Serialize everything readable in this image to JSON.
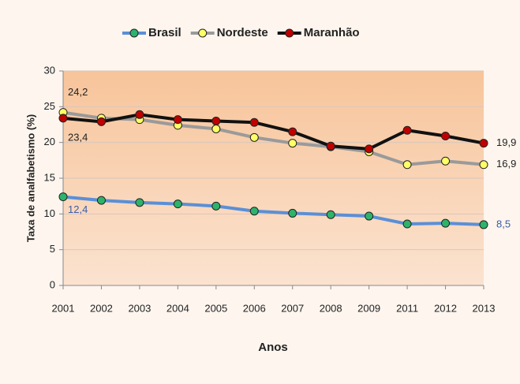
{
  "chart_data": {
    "type": "line",
    "categories": [
      "2001",
      "2002",
      "2003",
      "2004",
      "2005",
      "2006",
      "2007",
      "2008",
      "2009",
      "2011",
      "2012",
      "2013"
    ],
    "series": [
      {
        "name": "Brasil",
        "color": "#5b8fd6",
        "marker_color": "#2db36b",
        "values": [
          12.4,
          11.9,
          11.6,
          11.4,
          11.1,
          10.4,
          10.1,
          9.9,
          9.7,
          8.6,
          8.7,
          8.5
        ],
        "value_labels": [
          "12,4",
          null,
          null,
          null,
          null,
          null,
          null,
          null,
          null,
          null,
          null,
          "8,5"
        ]
      },
      {
        "name": "Nordeste",
        "color": "#9a9a9a",
        "marker_color": "#ffff66",
        "values": [
          24.2,
          23.4,
          23.2,
          22.4,
          21.9,
          20.7,
          19.9,
          19.4,
          18.7,
          16.9,
          17.4,
          16.9
        ],
        "value_labels": [
          "24,2",
          null,
          null,
          null,
          null,
          null,
          null,
          null,
          null,
          null,
          null,
          "16,9"
        ]
      },
      {
        "name": "Maranhão",
        "color": "#111111",
        "marker_color": "#c00000",
        "values": [
          23.4,
          22.9,
          23.9,
          23.2,
          23.0,
          22.8,
          21.5,
          19.5,
          19.1,
          21.7,
          20.9,
          19.9
        ],
        "value_labels": [
          "23,4",
          null,
          null,
          null,
          null,
          null,
          null,
          null,
          null,
          null,
          null,
          "19,9"
        ]
      }
    ],
    "ylabel": "Taxa de analfabetismo (%)",
    "xlabel": "Anos",
    "ylim": [
      0,
      30
    ],
    "yticks": [
      0,
      5,
      10,
      15,
      20,
      25,
      30
    ],
    "grid": true,
    "legend": "top"
  }
}
